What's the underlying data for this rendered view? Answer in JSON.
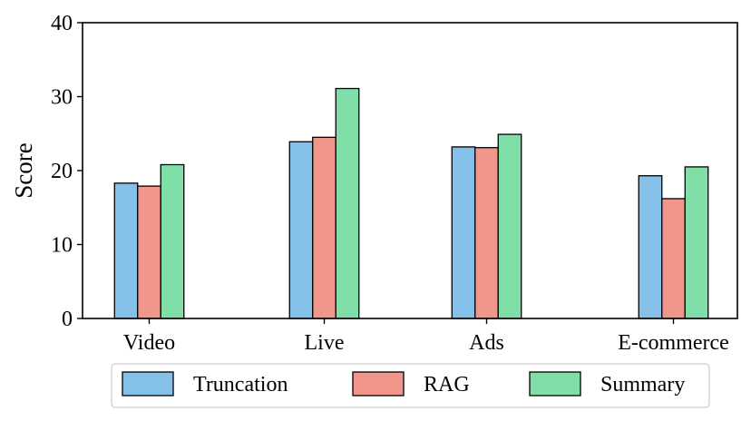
{
  "chart_data": {
    "type": "bar",
    "title": "",
    "xlabel": "",
    "ylabel": "Score",
    "ylim": [
      0,
      40
    ],
    "yticks": [
      0,
      10,
      20,
      30,
      40
    ],
    "grid": false,
    "legend_position": "bottom-center",
    "categories": [
      "Video",
      "Live",
      "Ads",
      "E-commerce"
    ],
    "series": [
      {
        "name": "Truncation",
        "color": "#85c0e8",
        "values": [
          18.3,
          23.9,
          23.2,
          19.3
        ]
      },
      {
        "name": "RAG",
        "color": "#f0968a",
        "values": [
          17.9,
          24.5,
          23.1,
          16.2
        ]
      },
      {
        "name": "Summary",
        "color": "#80dfa8",
        "values": [
          20.8,
          31.1,
          24.9,
          20.5
        ]
      }
    ]
  }
}
